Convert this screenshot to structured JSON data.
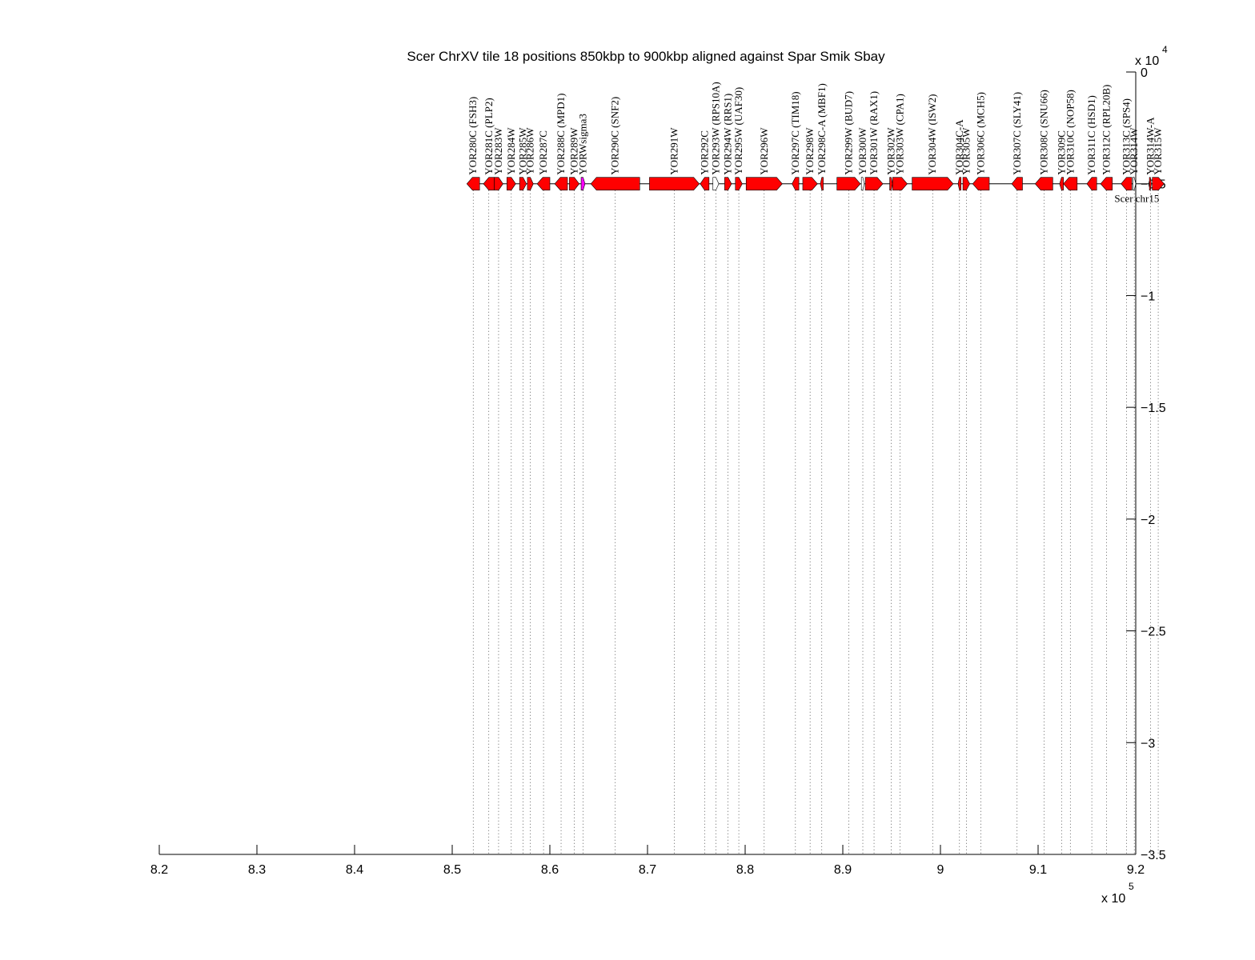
{
  "chart_data": {
    "type": "genome-alignment",
    "title": "Scer ChrXV tile 18 positions 850kbp to 900kbp aligned against Spar Smik Sbay",
    "xlabel": "",
    "ylabel": "",
    "x_multiplier": "x 10^5",
    "y_multiplier": "x 10^4",
    "x_multiplier_base": "x 10",
    "x_multiplier_exp": "5",
    "y_multiplier_base": "x 10",
    "y_multiplier_exp": "4",
    "xlim": [
      820000,
      920000
    ],
    "ylim": [
      -35000,
      0
    ],
    "x_ticks": [
      820000,
      830000,
      840000,
      850000,
      860000,
      870000,
      880000,
      890000,
      900000,
      910000,
      920000
    ],
    "x_tick_labels": [
      "8.2",
      "8.3",
      "8.4",
      "8.5",
      "8.6",
      "8.7",
      "8.8",
      "8.9",
      "9",
      "9.1",
      "9.2"
    ],
    "y_ticks": [
      0,
      -5000,
      -10000,
      -15000,
      -20000,
      -25000,
      -30000,
      -35000
    ],
    "y_tick_labels": [
      "0",
      "−0.5",
      "−1",
      "−1.5",
      "−2",
      "−2.5",
      "−3",
      "−3.5"
    ],
    "colors": {
      "gene": "#ff0000",
      "inverted": "#0000ff",
      "transposon": "#ff00ff",
      "nohit": "#ffffff",
      "link": "#000000"
    },
    "tracks": [
      {
        "name": "Scer chr15",
        "y": -5000,
        "start": 851500,
        "end": 906000,
        "features": [
          {
            "label": "YOR280C (FSH3)",
            "start": 851500,
            "end": 852800,
            "strand": -1,
            "kind": "gene"
          },
          {
            "label": "YOR281C (PLP2)",
            "start": 853200,
            "end": 854300,
            "strand": -1,
            "kind": "gene"
          },
          {
            "label": "YOR283W",
            "start": 854300,
            "end": 855200,
            "strand": 1,
            "kind": "gene"
          },
          {
            "label": "YOR284W",
            "start": 855600,
            "end": 856500,
            "strand": 1,
            "kind": "gene"
          },
          {
            "label": "YOR285W",
            "start": 856900,
            "end": 857600,
            "strand": 1,
            "kind": "gene"
          },
          {
            "label": "YOR286W",
            "start": 857700,
            "end": 858300,
            "strand": 1,
            "kind": "gene"
          },
          {
            "label": "YOR287C",
            "start": 858700,
            "end": 860000,
            "strand": -1,
            "kind": "gene"
          },
          {
            "label": "YOR288C (MPD1)",
            "start": 860500,
            "end": 861800,
            "strand": -1,
            "kind": "gene"
          },
          {
            "label": "YOR289W",
            "start": 862000,
            "end": 863000,
            "strand": 1,
            "kind": "gene"
          },
          {
            "label": "YORWsigma3",
            "start": 863200,
            "end": 863600,
            "strand": 1,
            "kind": "transposon"
          },
          {
            "label": "YOR290C (SNF2)",
            "start": 864200,
            "end": 869200,
            "strand": -1,
            "kind": "gene"
          },
          {
            "label": "YOR291W",
            "start": 870200,
            "end": 875300,
            "strand": 1,
            "kind": "gene"
          },
          {
            "label": "YOR292C",
            "start": 875400,
            "end": 876300,
            "strand": -1,
            "kind": "gene"
          },
          {
            "label": "YOR293W (RPS10A)",
            "start": 876700,
            "end": 877300,
            "strand": 1,
            "kind": "nohit"
          },
          {
            "label": "YOR294W (RRS1)",
            "start": 877900,
            "end": 878600,
            "strand": 1,
            "kind": "gene"
          },
          {
            "label": "YOR295W (UAF30)",
            "start": 879000,
            "end": 879700,
            "strand": 1,
            "kind": "gene"
          },
          {
            "label": "YOR296W",
            "start": 880100,
            "end": 883800,
            "strand": 1,
            "kind": "gene"
          },
          {
            "label": "YOR297C (TIM18)",
            "start": 884800,
            "end": 885500,
            "strand": -1,
            "kind": "gene"
          },
          {
            "label": "YOR298W",
            "start": 885900,
            "end": 887400,
            "strand": 1,
            "kind": "gene"
          },
          {
            "label": "YOR298C-A (MBF1)",
            "start": 887700,
            "end": 888000,
            "strand": -1,
            "kind": "gene"
          },
          {
            "label": "YOR299W (BUD7)",
            "start": 889400,
            "end": 891800,
            "strand": 1,
            "kind": "gene"
          },
          {
            "label": "YOR300W",
            "start": 891900,
            "end": 892200,
            "strand": 1,
            "kind": "nohit"
          },
          {
            "label": "YOR301W (RAX1)",
            "start": 892300,
            "end": 894100,
            "strand": 1,
            "kind": "gene"
          },
          {
            "label": "YOR302W",
            "start": 894800,
            "end": 895100,
            "strand": 1,
            "kind": "gene"
          },
          {
            "label": "YOR303W (CPA1)",
            "start": 895100,
            "end": 896600,
            "strand": 1,
            "kind": "gene"
          },
          {
            "label": "YOR304W (ISW2)",
            "start": 897100,
            "end": 901300,
            "strand": 1,
            "kind": "gene"
          },
          {
            "label": "YOR304C-A",
            "start": 901800,
            "end": 902100,
            "strand": -1,
            "kind": "gene"
          },
          {
            "label": "YOR305W",
            "start": 902300,
            "end": 903000,
            "strand": 1,
            "kind": "gene"
          },
          {
            "label": "YOR306C (MCH5)",
            "start": 903300,
            "end": 905000,
            "strand": -1,
            "kind": "gene"
          }
        ]
      }
    ]
  },
  "plot": {
    "title": "Scer ChrXV tile 18 positions 850kbp to 900kbp aligned against Spar Smik Sbay",
    "x_multiplier_base": "x 10",
    "x_multiplier_exp": "5",
    "y_multiplier_base": "x 10",
    "y_multiplier_exp": "4",
    "x_tick_labels": [
      "8.2",
      "8.3",
      "8.4",
      "8.5",
      "8.6",
      "8.7",
      "8.8",
      "8.9",
      "9",
      "9.1",
      "9.2"
    ],
    "y_tick_labels": [
      "0",
      "−0.5",
      "−1",
      "−1.5",
      "−2",
      "−2.5",
      "−3",
      "−3.5"
    ]
  },
  "rows": {
    "scer": {
      "contig": "Scer chr15",
      "y": -5000,
      "features": [
        {
          "l": "YOR280C (FSH3)",
          "s": 851500,
          "e": 852800,
          "d": -1,
          "k": "g"
        },
        {
          "l": "YOR281C (PLP2)",
          "s": 853200,
          "e": 854300,
          "d": -1,
          "k": "g"
        },
        {
          "l": "YOR283W",
          "s": 854300,
          "e": 855200,
          "d": 1,
          "k": "g"
        },
        {
          "l": "YOR284W",
          "s": 855600,
          "e": 856500,
          "d": 1,
          "k": "g"
        },
        {
          "l": "YOR285W",
          "s": 856900,
          "e": 857600,
          "d": 1,
          "k": "g"
        },
        {
          "l": "YOR286W",
          "s": 857700,
          "e": 858300,
          "d": 1,
          "k": "g"
        },
        {
          "l": "YOR287C",
          "s": 858700,
          "e": 860000,
          "d": -1,
          "k": "g"
        },
        {
          "l": "YOR288C (MPD1)",
          "s": 860500,
          "e": 861800,
          "d": -1,
          "k": "g"
        },
        {
          "l": "YOR289W",
          "s": 862000,
          "e": 863000,
          "d": 1,
          "k": "g"
        },
        {
          "l": "YORWsigma3",
          "s": 863200,
          "e": 863600,
          "d": 1,
          "k": "t"
        },
        {
          "l": "YOR290C (SNF2)",
          "s": 864200,
          "e": 869200,
          "d": -1,
          "k": "g"
        },
        {
          "l": "YOR291W",
          "s": 870200,
          "e": 875300,
          "d": 1,
          "k": "g"
        },
        {
          "l": "YOR292C",
          "s": 875400,
          "e": 876300,
          "d": -1,
          "k": "g"
        },
        {
          "l": "YOR293W (RPS10A)",
          "s": 876700,
          "e": 877300,
          "d": 1,
          "k": "n"
        },
        {
          "l": "YOR294W (RRS1)",
          "s": 877900,
          "e": 878600,
          "d": 1,
          "k": "g"
        },
        {
          "l": "YOR295W (UAF30)",
          "s": 879000,
          "e": 879700,
          "d": 1,
          "k": "g"
        },
        {
          "l": "YOR296W",
          "s": 880100,
          "e": 883800,
          "d": 1,
          "k": "g"
        },
        {
          "l": "YOR297C (TIM18)",
          "s": 884800,
          "e": 885500,
          "d": -1,
          "k": "g"
        },
        {
          "l": "YOR298W",
          "s": 885900,
          "e": 887400,
          "d": 1,
          "k": "g"
        },
        {
          "l": "YOR298C-A (MBF1)",
          "s": 887700,
          "e": 888000,
          "d": -1,
          "k": "g"
        },
        {
          "l": "YOR299W (BUD7)",
          "s": 889400,
          "e": 891800,
          "d": 1,
          "k": "g"
        },
        {
          "l": "YOR300W",
          "s": 891900,
          "e": 892200,
          "d": 1,
          "k": "n"
        },
        {
          "l": "YOR301W (RAX1)",
          "s": 892300,
          "e": 894100,
          "d": 1,
          "k": "g"
        },
        {
          "l": "YOR302W",
          "s": 894800,
          "e": 895100,
          "d": 1,
          "k": "g"
        },
        {
          "l": "YOR303W (CPA1)",
          "s": 895100,
          "e": 896600,
          "d": 1,
          "k": "g"
        },
        {
          "l": "YOR304W (ISW2)",
          "s": 897100,
          "e": 901300,
          "d": 1,
          "k": "g"
        },
        {
          "l": "YOR304C-A",
          "s": 901800,
          "e": 902100,
          "d": -1,
          "k": "g"
        },
        {
          "l": "YOR305W",
          "s": 902300,
          "e": 903000,
          "d": 1,
          "k": "g"
        },
        {
          "l": "YOR306C (MCH5)",
          "s": 903300,
          "e": 905000,
          "d": -1,
          "k": "g"
        },
        {
          "l": "YOR307C (SLY41)",
          "s": 907300,
          "e": 908400,
          "d": -1,
          "k": "g"
        },
        {
          "l": "YOR308C (SNU66)",
          "s": 909700,
          "e": 911500,
          "d": -1,
          "k": "g"
        },
        {
          "l": "YOR309C",
          "s": 912200,
          "e": 912600,
          "d": -1,
          "k": "g"
        },
        {
          "l": "YOR310C (NOP58)",
          "s": 912600,
          "e": 914000,
          "d": -1,
          "k": "g"
        },
        {
          "l": "YOR311C (HSD1)",
          "s": 915000,
          "e": 916000,
          "d": -1,
          "k": "g"
        },
        {
          "l": "YOR312C (RPL20B)",
          "s": 916400,
          "e": 917600,
          "d": -1,
          "k": "g"
        },
        {
          "l": "YOR313C (SPS4)",
          "s": 918500,
          "e": 919600,
          "d": -1,
          "k": "g"
        },
        {
          "l": "YOR314W",
          "s": 919700,
          "e": 920000,
          "d": 1,
          "k": "n"
        },
        {
          "l": "YOR314W-A",
          "s": 921400,
          "e": 921600,
          "d": 1,
          "k": "g"
        },
        {
          "l": "YOR315W",
          "s": 921700,
          "e": 922900,
          "d": 1,
          "k": "g"
        }
      ]
    }
  }
}
